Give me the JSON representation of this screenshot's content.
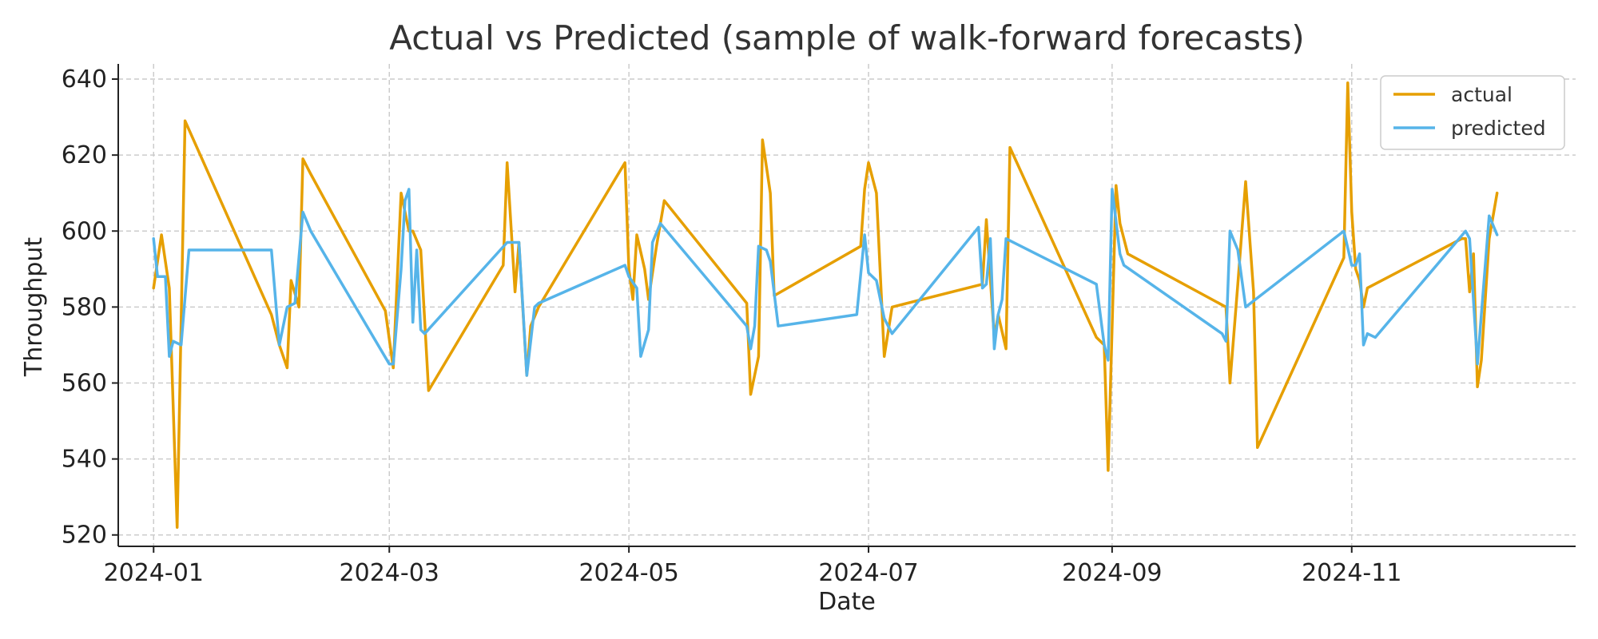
{
  "chart_data": {
    "type": "line",
    "title": "Actual vs Predicted (sample of walk-forward forecasts)",
    "xlabel": "Date",
    "ylabel": "Throughput",
    "x_axis_type": "date",
    "xlim": [
      "2023-12-23",
      "2024-12-28"
    ],
    "ylim": [
      517,
      644
    ],
    "x_ticks": [
      "2024-01-01",
      "2024-03-01",
      "2024-05-01",
      "2024-07-01",
      "2024-09-01",
      "2024-11-01"
    ],
    "x_tick_labels": [
      "2024-01",
      "2024-03",
      "2024-05",
      "2024-07",
      "2024-09",
      "2024-11"
    ],
    "y_ticks": [
      520,
      540,
      560,
      580,
      600,
      620,
      640
    ],
    "grid": true,
    "legend_position": "top-right",
    "series": [
      {
        "name": "actual",
        "color": "#E69F00",
        "points": [
          [
            "2024-01-01",
            585
          ],
          [
            "2024-01-03",
            599
          ],
          [
            "2024-01-05",
            585
          ],
          [
            "2024-01-07",
            522
          ],
          [
            "2024-01-09",
            629
          ],
          [
            "2024-01-31",
            578
          ],
          [
            "2024-02-02",
            570
          ],
          [
            "2024-02-04",
            564
          ],
          [
            "2024-02-05",
            587
          ],
          [
            "2024-02-07",
            580
          ],
          [
            "2024-02-08",
            619
          ],
          [
            "2024-02-10",
            615
          ],
          [
            "2024-02-29",
            579
          ],
          [
            "2024-03-02",
            564
          ],
          [
            "2024-03-04",
            610
          ],
          [
            "2024-03-06",
            600
          ],
          [
            "2024-03-07",
            600
          ],
          [
            "2024-03-09",
            595
          ],
          [
            "2024-03-11",
            558
          ],
          [
            "2024-03-30",
            591
          ],
          [
            "2024-03-31",
            618
          ],
          [
            "2024-04-02",
            584
          ],
          [
            "2024-04-03",
            597
          ],
          [
            "2024-04-05",
            562
          ],
          [
            "2024-04-06",
            575
          ],
          [
            "2024-04-08",
            580
          ],
          [
            "2024-04-30",
            618
          ],
          [
            "2024-05-01",
            590
          ],
          [
            "2024-05-02",
            582
          ],
          [
            "2024-05-03",
            599
          ],
          [
            "2024-05-05",
            590
          ],
          [
            "2024-05-06",
            582
          ],
          [
            "2024-05-08",
            596
          ],
          [
            "2024-05-10",
            608
          ],
          [
            "2024-05-31",
            581
          ],
          [
            "2024-06-01",
            557
          ],
          [
            "2024-06-03",
            567
          ],
          [
            "2024-06-04",
            624
          ],
          [
            "2024-06-06",
            610
          ],
          [
            "2024-06-07",
            583
          ],
          [
            "2024-06-29",
            596
          ],
          [
            "2024-06-30",
            611
          ],
          [
            "2024-07-01",
            618
          ],
          [
            "2024-07-03",
            610
          ],
          [
            "2024-07-05",
            567
          ],
          [
            "2024-07-07",
            580
          ],
          [
            "2024-07-30",
            586
          ],
          [
            "2024-07-31",
            603
          ],
          [
            "2024-08-02",
            572
          ],
          [
            "2024-08-03",
            578
          ],
          [
            "2024-08-05",
            569
          ],
          [
            "2024-08-06",
            622
          ],
          [
            "2024-08-28",
            572
          ],
          [
            "2024-08-30",
            570
          ],
          [
            "2024-08-31",
            537
          ],
          [
            "2024-09-02",
            612
          ],
          [
            "2024-09-03",
            602
          ],
          [
            "2024-09-05",
            594
          ],
          [
            "2024-09-30",
            580
          ],
          [
            "2024-10-01",
            560
          ],
          [
            "2024-10-03",
            586
          ],
          [
            "2024-10-05",
            613
          ],
          [
            "2024-10-07",
            584
          ],
          [
            "2024-10-08",
            543
          ],
          [
            "2024-10-30",
            593
          ],
          [
            "2024-10-31",
            639
          ],
          [
            "2024-11-01",
            605
          ],
          [
            "2024-11-02",
            590
          ],
          [
            "2024-11-03",
            587
          ],
          [
            "2024-11-04",
            580
          ],
          [
            "2024-11-05",
            585
          ],
          [
            "2024-11-29",
            598
          ],
          [
            "2024-11-30",
            598
          ],
          [
            "2024-12-01",
            584
          ],
          [
            "2024-12-02",
            594
          ],
          [
            "2024-12-03",
            559
          ],
          [
            "2024-12-04",
            566
          ],
          [
            "2024-12-06",
            598
          ],
          [
            "2024-12-08",
            610
          ]
        ]
      },
      {
        "name": "predicted",
        "color": "#56B4E9",
        "points": [
          [
            "2024-01-01",
            598
          ],
          [
            "2024-01-02",
            588
          ],
          [
            "2024-01-04",
            588
          ],
          [
            "2024-01-05",
            567
          ],
          [
            "2024-01-06",
            571
          ],
          [
            "2024-01-08",
            570
          ],
          [
            "2024-01-10",
            595
          ],
          [
            "2024-01-31",
            595
          ],
          [
            "2024-02-02",
            570
          ],
          [
            "2024-02-04",
            580
          ],
          [
            "2024-02-06",
            581
          ],
          [
            "2024-02-08",
            605
          ],
          [
            "2024-02-10",
            600
          ],
          [
            "2024-03-01",
            565
          ],
          [
            "2024-03-02",
            565
          ],
          [
            "2024-03-04",
            590
          ],
          [
            "2024-03-05",
            608
          ],
          [
            "2024-03-06",
            611
          ],
          [
            "2024-03-07",
            576
          ],
          [
            "2024-03-08",
            595
          ],
          [
            "2024-03-09",
            574
          ],
          [
            "2024-03-10",
            573
          ],
          [
            "2024-03-31",
            597
          ],
          [
            "2024-04-01",
            597
          ],
          [
            "2024-04-03",
            597
          ],
          [
            "2024-04-04",
            580
          ],
          [
            "2024-04-05",
            562
          ],
          [
            "2024-04-07",
            580
          ],
          [
            "2024-04-08",
            581
          ],
          [
            "2024-04-30",
            591
          ],
          [
            "2024-05-01",
            588
          ],
          [
            "2024-05-03",
            585
          ],
          [
            "2024-05-04",
            567
          ],
          [
            "2024-05-06",
            574
          ],
          [
            "2024-05-07",
            597
          ],
          [
            "2024-05-09",
            602
          ],
          [
            "2024-05-31",
            575
          ],
          [
            "2024-06-01",
            569
          ],
          [
            "2024-06-02",
            575
          ],
          [
            "2024-06-03",
            596
          ],
          [
            "2024-06-05",
            595
          ],
          [
            "2024-06-06",
            592
          ],
          [
            "2024-06-08",
            575
          ],
          [
            "2024-06-28",
            578
          ],
          [
            "2024-06-30",
            599
          ],
          [
            "2024-07-01",
            589
          ],
          [
            "2024-07-03",
            587
          ],
          [
            "2024-07-05",
            577
          ],
          [
            "2024-07-07",
            573
          ],
          [
            "2024-07-29",
            601
          ],
          [
            "2024-07-30",
            585
          ],
          [
            "2024-07-31",
            586
          ],
          [
            "2024-08-01",
            598
          ],
          [
            "2024-08-02",
            569
          ],
          [
            "2024-08-03",
            578
          ],
          [
            "2024-08-04",
            582
          ],
          [
            "2024-08-05",
            598
          ],
          [
            "2024-08-28",
            586
          ],
          [
            "2024-08-30",
            570
          ],
          [
            "2024-08-31",
            566
          ],
          [
            "2024-09-01",
            611
          ],
          [
            "2024-09-03",
            594
          ],
          [
            "2024-09-04",
            591
          ],
          [
            "2024-09-29",
            573
          ],
          [
            "2024-09-30",
            571
          ],
          [
            "2024-10-01",
            600
          ],
          [
            "2024-10-03",
            595
          ],
          [
            "2024-10-05",
            580
          ],
          [
            "2024-10-30",
            600
          ],
          [
            "2024-11-01",
            591
          ],
          [
            "2024-11-02",
            591
          ],
          [
            "2024-11-03",
            594
          ],
          [
            "2024-11-04",
            570
          ],
          [
            "2024-11-05",
            573
          ],
          [
            "2024-11-07",
            572
          ],
          [
            "2024-11-30",
            600
          ],
          [
            "2024-12-01",
            598
          ],
          [
            "2024-12-03",
            565
          ],
          [
            "2024-12-06",
            604
          ],
          [
            "2024-12-08",
            599
          ]
        ]
      }
    ]
  }
}
